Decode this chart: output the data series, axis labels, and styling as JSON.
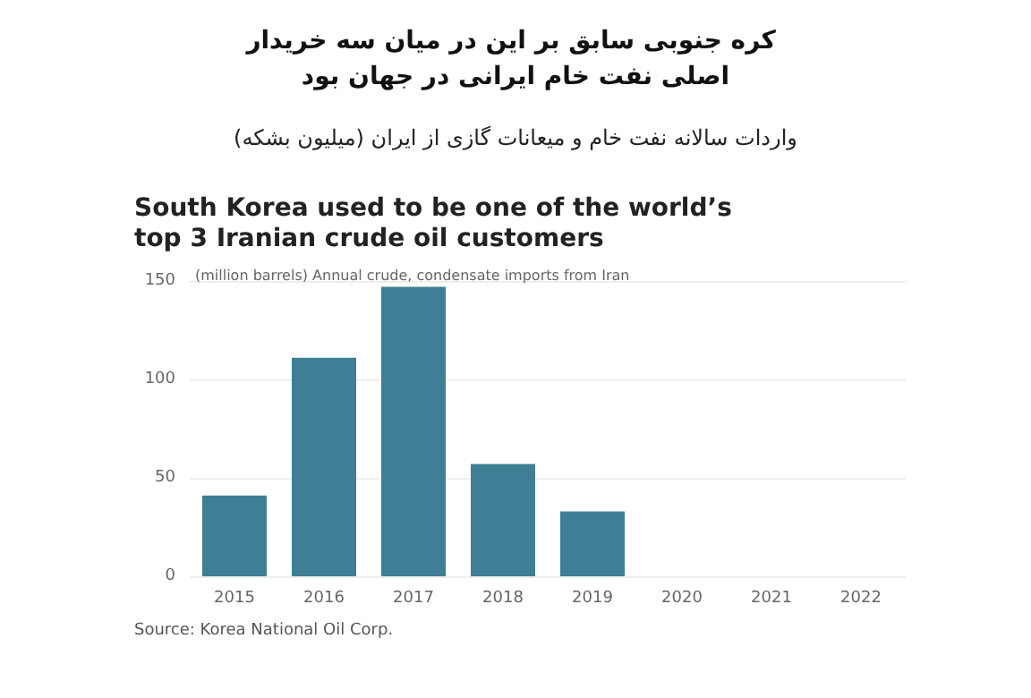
{
  "chart_data": {
    "type": "bar",
    "title": "کره جنوبی سابق بر این در میان سه خریدار اصلی نفت خام ایرانی در جهان بود",
    "subtitle": "واردات سالانه نفت خام و میعانات گازی از ایران (میلیون بشکه)",
    "annotations": [
      "South Korea used to be one of the world’s\ntop 3 Iranian crude oil customers",
      "Source: Korea National Oil Corp."
    ],
    "ylabel": "(million barrels) Annual crude, condensate imports from Iran",
    "categories": [
      "2015",
      "2016",
      "2017",
      "2018",
      "2019",
      "2020",
      "2021",
      "2022"
    ],
    "values": [
      41,
      111,
      147,
      57,
      33,
      0,
      0,
      0
    ],
    "color": "#3f7f96",
    "ylim": [
      0,
      150
    ],
    "yticks": [
      0,
      50,
      100,
      150
    ],
    "grid": "y"
  }
}
